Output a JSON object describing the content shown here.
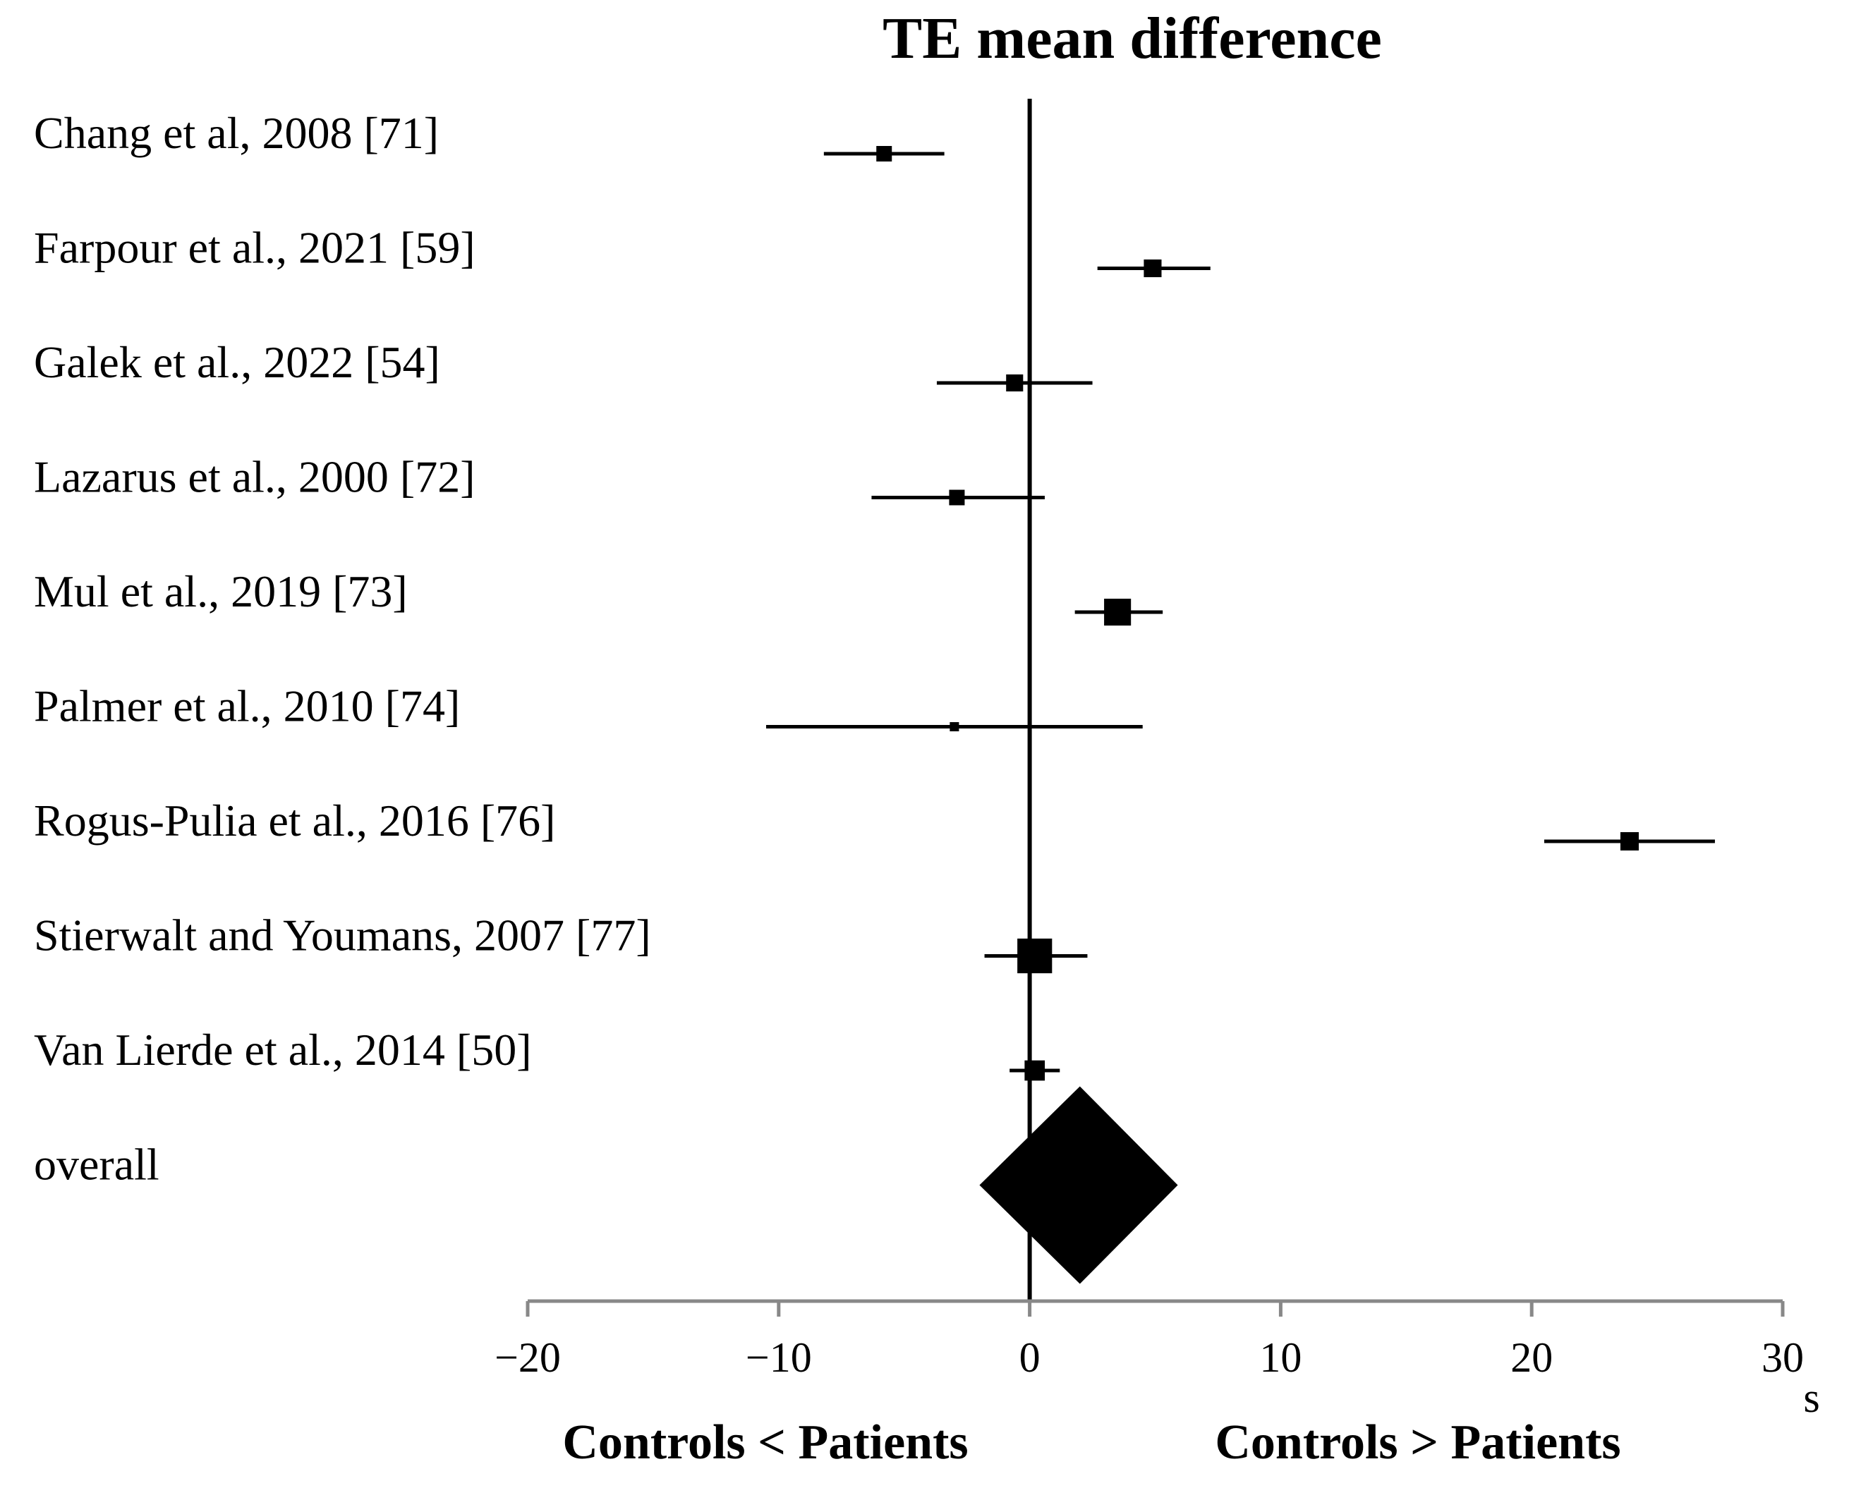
{
  "chart_data": {
    "type": "forest",
    "title": "TE mean difference",
    "x_unit": "s",
    "xlim": [
      -20,
      30
    ],
    "x_ticks": [
      -20,
      -10,
      0,
      10,
      20,
      30
    ],
    "x_tick_labels": [
      "−20",
      "−10",
      "0",
      "10",
      "20",
      "30"
    ],
    "left_label": "Controls < Patients",
    "right_label": "Controls > Patients",
    "studies": [
      {
        "label": "Chang et al, 2008 [71]",
        "estimate": -5.8,
        "ci_low": -8.2,
        "ci_high": -3.4,
        "weight": 1.0
      },
      {
        "label": "Farpour et al., 2021 [59]",
        "estimate": 4.9,
        "ci_low": 2.7,
        "ci_high": 7.2,
        "weight": 1.3
      },
      {
        "label": "Galek et al., 2022 [54]",
        "estimate": -0.6,
        "ci_low": -3.7,
        "ci_high": 2.5,
        "weight": 1.2
      },
      {
        "label": "Lazarus et al., 2000 [72]",
        "estimate": -2.9,
        "ci_low": -6.3,
        "ci_high": 0.6,
        "weight": 1.0
      },
      {
        "label": "Mul et al., 2019 [73]",
        "estimate": 3.5,
        "ci_low": 1.8,
        "ci_high": 5.3,
        "weight": 3.0
      },
      {
        "label": "Palmer et al., 2010 [74]",
        "estimate": -3.0,
        "ci_low": -10.5,
        "ci_high": 4.5,
        "weight": 0.35
      },
      {
        "label": "Rogus-Pulia et al., 2016 [76]",
        "estimate": 23.9,
        "ci_low": 20.5,
        "ci_high": 27.3,
        "weight": 1.4
      },
      {
        "label": "Stierwalt and Youmans,  2007 [77]",
        "estimate": 0.2,
        "ci_low": -1.8,
        "ci_high": 2.3,
        "weight": 5.0
      },
      {
        "label": "Van Lierde et al., 2014 [50]",
        "estimate": 0.2,
        "ci_low": -0.8,
        "ci_high": 1.2,
        "weight": 1.7
      }
    ],
    "overall": {
      "label": "overall",
      "estimate": 2.0,
      "ci_low": -2.0,
      "ci_high": 5.9
    }
  }
}
